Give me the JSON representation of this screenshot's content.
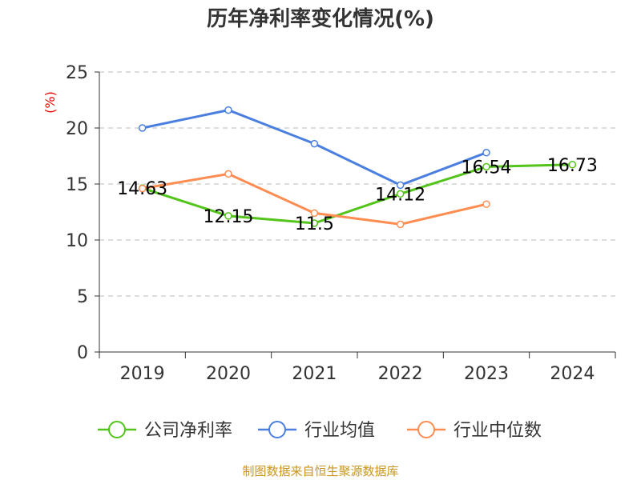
{
  "chart_data": {
    "type": "line",
    "title": "历年净利率变化情况(%)",
    "ylabel": "(%)",
    "ylim": [
      0,
      25
    ],
    "yticks": [
      0,
      5,
      10,
      15,
      20,
      25
    ],
    "grid": true,
    "legend_placement": "bottom",
    "categories": [
      "2019",
      "2020",
      "2021",
      "2022",
      "2023",
      "2024"
    ],
    "series": [
      {
        "name": "公司净利率",
        "color": "#52c41a",
        "values": [
          14.63,
          12.15,
          11.5,
          14.12,
          16.54,
          16.73
        ],
        "labels": [
          "14.63",
          "12.15",
          "11.5",
          "14.12",
          "16.54",
          "16.73"
        ]
      },
      {
        "name": "行业均值",
        "color": "#4a7fe0",
        "values": [
          20.0,
          21.6,
          18.6,
          14.9,
          17.8,
          null
        ]
      },
      {
        "name": "行业中位数",
        "color": "#ff8c50",
        "values": [
          14.6,
          15.9,
          12.4,
          11.4,
          13.2,
          null
        ]
      }
    ]
  },
  "source": "制图数据来自恒生聚源数据库"
}
